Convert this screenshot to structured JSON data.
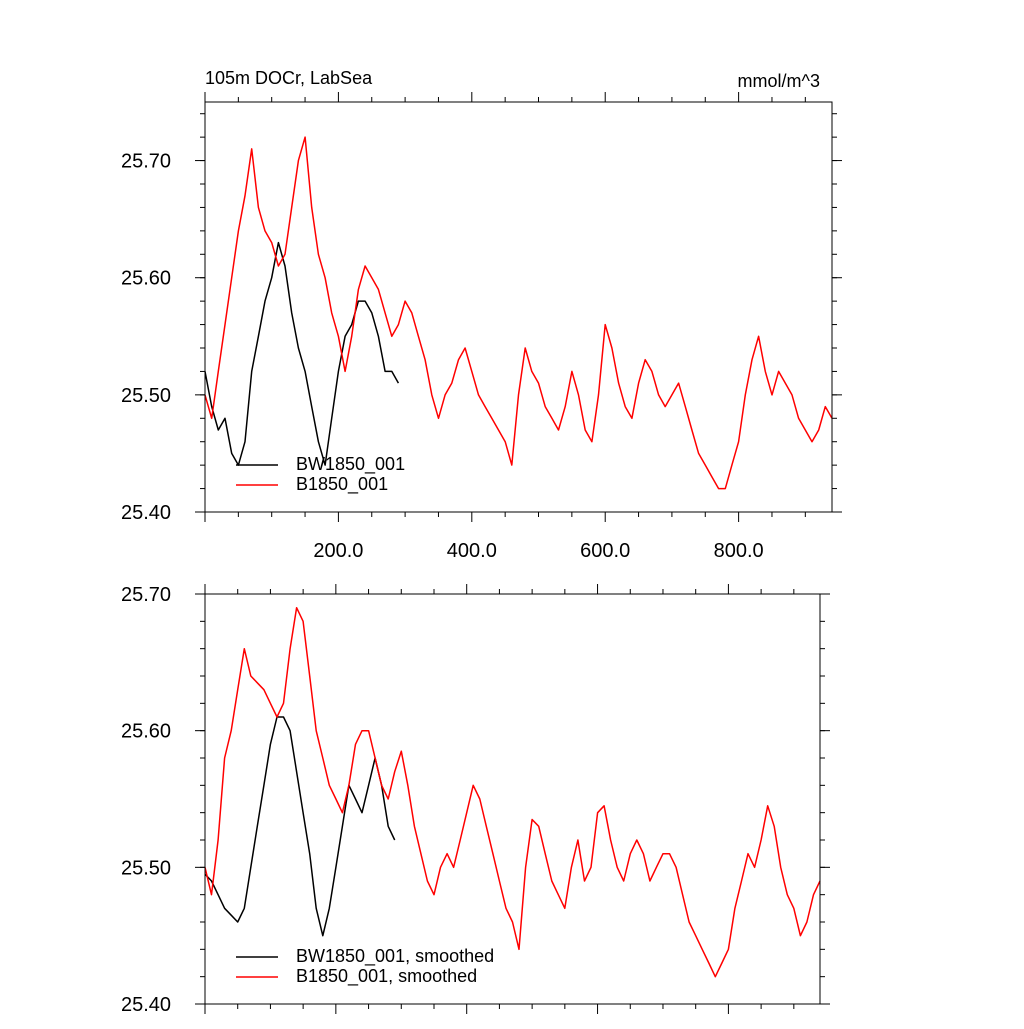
{
  "title_left": "105m DOCr, LabSea",
  "title_right": "mmol/m^3",
  "colors": {
    "series_1": "#000000",
    "series_2": "#ff0000",
    "axis": "#000000"
  },
  "chart_data": [
    {
      "type": "line",
      "xlim": [
        0,
        940
      ],
      "ylim": [
        25.4,
        25.75
      ],
      "xticks": [
        {
          "value": 200,
          "label": "200.0"
        },
        {
          "value": 400,
          "label": "400.0"
        },
        {
          "value": 600,
          "label": "600.0"
        },
        {
          "value": 800,
          "label": "800.0"
        }
      ],
      "yticks": [
        {
          "value": 25.4,
          "label": "25.40"
        },
        {
          "value": 25.5,
          "label": "25.50"
        },
        {
          "value": 25.6,
          "label": "25.60"
        },
        {
          "value": 25.7,
          "label": "25.70"
        }
      ],
      "legend_position": "bottom-left",
      "series": [
        {
          "name": "BW1850_001",
          "color": "#000000",
          "x": [
            0,
            10,
            20,
            30,
            40,
            50,
            60,
            70,
            80,
            90,
            100,
            110,
            120,
            130,
            140,
            150,
            160,
            170,
            180,
            190,
            200,
            210,
            220,
            230,
            240,
            250,
            260,
            270,
            280,
            290
          ],
          "y": [
            25.52,
            25.49,
            25.47,
            25.48,
            25.45,
            25.44,
            25.46,
            25.52,
            25.55,
            25.58,
            25.6,
            25.63,
            25.61,
            25.57,
            25.54,
            25.52,
            25.49,
            25.46,
            25.44,
            25.48,
            25.52,
            25.55,
            25.56,
            25.58,
            25.58,
            25.57,
            25.55,
            25.52,
            25.52,
            25.51
          ]
        },
        {
          "name": "B1850_001",
          "color": "#ff0000",
          "x": [
            0,
            10,
            20,
            30,
            40,
            50,
            60,
            70,
            80,
            90,
            100,
            110,
            120,
            130,
            140,
            150,
            160,
            170,
            180,
            190,
            200,
            210,
            220,
            230,
            240,
            250,
            260,
            270,
            280,
            290,
            300,
            310,
            320,
            330,
            340,
            350,
            360,
            370,
            380,
            390,
            400,
            410,
            420,
            430,
            440,
            450,
            460,
            470,
            480,
            490,
            500,
            510,
            520,
            530,
            540,
            550,
            560,
            570,
            580,
            590,
            600,
            610,
            620,
            630,
            640,
            650,
            660,
            670,
            680,
            690,
            700,
            710,
            720,
            730,
            740,
            750,
            760,
            770,
            780,
            790,
            800,
            810,
            820,
            830,
            840,
            850,
            860,
            870,
            880,
            890,
            900,
            910,
            920,
            930,
            940
          ],
          "y": [
            25.5,
            25.48,
            25.52,
            25.56,
            25.6,
            25.64,
            25.67,
            25.71,
            25.66,
            25.64,
            25.63,
            25.61,
            25.62,
            25.66,
            25.7,
            25.72,
            25.66,
            25.62,
            25.6,
            25.57,
            25.55,
            25.52,
            25.55,
            25.59,
            25.61,
            25.6,
            25.59,
            25.57,
            25.55,
            25.56,
            25.58,
            25.57,
            25.55,
            25.53,
            25.5,
            25.48,
            25.5,
            25.51,
            25.53,
            25.54,
            25.52,
            25.5,
            25.49,
            25.48,
            25.47,
            25.46,
            25.44,
            25.5,
            25.54,
            25.52,
            25.51,
            25.49,
            25.48,
            25.47,
            25.49,
            25.52,
            25.5,
            25.47,
            25.46,
            25.5,
            25.56,
            25.54,
            25.51,
            25.49,
            25.48,
            25.51,
            25.53,
            25.52,
            25.5,
            25.49,
            25.5,
            25.51,
            25.49,
            25.47,
            25.45,
            25.44,
            25.43,
            25.42,
            25.42,
            25.44,
            25.46,
            25.5,
            25.53,
            25.55,
            25.52,
            25.5,
            25.52,
            25.51,
            25.5,
            25.48,
            25.47,
            25.46,
            25.47,
            25.49,
            25.48
          ]
        }
      ]
    },
    {
      "type": "line",
      "xlim": [
        0,
        940
      ],
      "ylim": [
        25.4,
        25.7
      ],
      "yticks": [
        {
          "value": 25.4,
          "label": "25.40"
        },
        {
          "value": 25.5,
          "label": "25.50"
        },
        {
          "value": 25.6,
          "label": "25.60"
        },
        {
          "value": 25.7,
          "label": "25.70"
        }
      ],
      "legend_position": "bottom-left",
      "series": [
        {
          "name": "BW1850_001, smoothed",
          "color": "#000000",
          "x": [
            0,
            10,
            20,
            30,
            40,
            50,
            60,
            70,
            80,
            90,
            100,
            110,
            120,
            130,
            140,
            150,
            160,
            170,
            180,
            190,
            200,
            210,
            220,
            230,
            240,
            250,
            260,
            270,
            280,
            290
          ],
          "y": [
            25.495,
            25.49,
            25.48,
            25.47,
            25.465,
            25.46,
            25.47,
            25.5,
            25.53,
            25.56,
            25.59,
            25.61,
            25.61,
            25.6,
            25.57,
            25.54,
            25.51,
            25.47,
            25.45,
            25.47,
            25.5,
            25.53,
            25.56,
            25.55,
            25.54,
            25.56,
            25.58,
            25.56,
            25.53,
            25.52
          ]
        },
        {
          "name": "B1850_001, smoothed",
          "color": "#ff0000",
          "x": [
            0,
            10,
            20,
            30,
            40,
            50,
            60,
            70,
            80,
            90,
            100,
            110,
            120,
            130,
            140,
            150,
            160,
            170,
            180,
            190,
            200,
            210,
            220,
            230,
            240,
            250,
            260,
            270,
            280,
            290,
            300,
            310,
            320,
            330,
            340,
            350,
            360,
            370,
            380,
            390,
            400,
            410,
            420,
            430,
            440,
            450,
            460,
            470,
            480,
            490,
            500,
            510,
            520,
            530,
            540,
            550,
            560,
            570,
            580,
            590,
            600,
            610,
            620,
            630,
            640,
            650,
            660,
            670,
            680,
            690,
            700,
            710,
            720,
            730,
            740,
            750,
            760,
            770,
            780,
            790,
            800,
            810,
            820,
            830,
            840,
            850,
            860,
            870,
            880,
            890,
            900,
            910,
            920,
            930,
            940
          ],
          "y": [
            25.5,
            25.48,
            25.52,
            25.58,
            25.6,
            25.63,
            25.66,
            25.64,
            25.635,
            25.63,
            25.62,
            25.61,
            25.62,
            25.66,
            25.69,
            25.68,
            25.64,
            25.6,
            25.58,
            25.56,
            25.55,
            25.54,
            25.56,
            25.59,
            25.6,
            25.6,
            25.58,
            25.56,
            25.55,
            25.57,
            25.585,
            25.56,
            25.53,
            25.51,
            25.49,
            25.48,
            25.5,
            25.51,
            25.5,
            25.52,
            25.54,
            25.56,
            25.55,
            25.53,
            25.51,
            25.49,
            25.47,
            25.46,
            25.44,
            25.5,
            25.535,
            25.53,
            25.51,
            25.49,
            25.48,
            25.47,
            25.5,
            25.52,
            25.49,
            25.5,
            25.54,
            25.545,
            25.52,
            25.5,
            25.49,
            25.51,
            25.52,
            25.51,
            25.49,
            25.5,
            25.51,
            25.51,
            25.5,
            25.48,
            25.46,
            25.45,
            25.44,
            25.43,
            25.42,
            25.43,
            25.44,
            25.47,
            25.49,
            25.51,
            25.5,
            25.52,
            25.545,
            25.53,
            25.5,
            25.48,
            25.47,
            25.45,
            25.46,
            25.48,
            25.49
          ]
        }
      ]
    }
  ]
}
